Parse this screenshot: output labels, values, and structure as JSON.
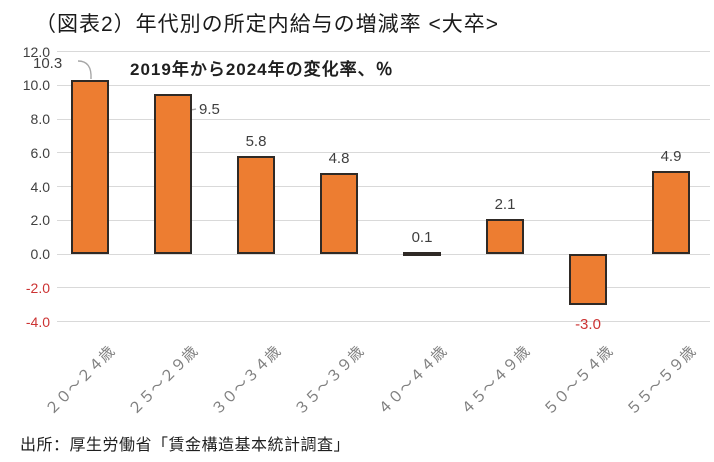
{
  "title": "（図表2）年代別の所定内給与の増減率 <大卒>",
  "subtitle": "2019年から2024年の変化率、％",
  "source": "出所：厚生労働省「賃金構造基本統計調査」",
  "colors": {
    "bar_fill": "#ED7D31",
    "bar_border": "#2f2a26",
    "gridline": "#d9d9d9",
    "axis_label": "#404040",
    "negative_label": "#cc3333",
    "category_label": "#7f7f7f",
    "leader_line": "#a6a6a6"
  },
  "chart_data": {
    "type": "bar",
    "title": "（図表2）年代別の所定内給与の増減率 <大卒>",
    "subtitle": "2019年から2024年の変化率、％",
    "categories": [
      "２０～２４歳",
      "２５～２９歳",
      "３０～３４歳",
      "３５～３９歳",
      "４０～４４歳",
      "４５～４９歳",
      "５０～５４歳",
      "５５～５９歳"
    ],
    "values": [
      10.3,
      9.5,
      5.8,
      4.8,
      0.1,
      2.1,
      -3.0,
      4.9
    ],
    "data_labels": [
      "10.3",
      "9.5",
      "5.8",
      "4.8",
      "0.1",
      "2.1",
      "-3.0",
      "4.9"
    ],
    "xlabel": "",
    "ylabel": "",
    "ylim": [
      -4.0,
      12.0
    ],
    "ytick_step": 2.0,
    "yticks": [
      "12.0",
      "10.0",
      "8.0",
      "6.0",
      "4.0",
      "2.0",
      "0.0",
      "-2.0",
      "-4.0"
    ],
    "grid": true,
    "legend": false,
    "source": "出所：厚生労働省「賃金構造基本統計調査」"
  }
}
